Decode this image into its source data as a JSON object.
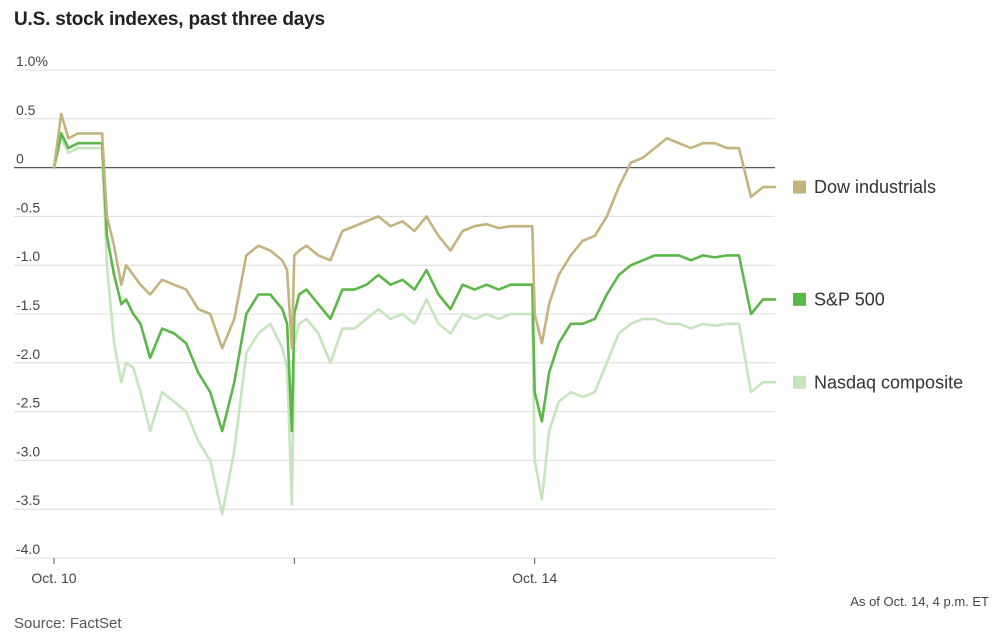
{
  "title": "U.S. stock indexes, past three days",
  "footnote": "As of Oct. 14, 4 p.m. ET",
  "source": "Source: FactSet",
  "chart_data": {
    "type": "line",
    "title": "U.S. stock indexes, past three days",
    "xlabel": "",
    "ylabel": "",
    "ylim": [
      -4.0,
      1.0
    ],
    "yticks": [
      1.0,
      0.5,
      0,
      -0.5,
      -1.0,
      -1.5,
      -2.0,
      -2.5,
      -3.0,
      -3.5,
      -4.0
    ],
    "ytick_labels": [
      "1.0%",
      "0.5",
      "0",
      "-0.5",
      "-1.0",
      "-1.5",
      "-2.0",
      "-2.5",
      "-3.0",
      "-3.5",
      "-4.0"
    ],
    "xlim": [
      0,
      3
    ],
    "xticks": [
      0,
      1,
      2
    ],
    "xtick_labels": [
      "Oct. 10",
      "",
      "Oct. 14"
    ],
    "grid": true,
    "legend": "right",
    "x": [
      0,
      0.03,
      0.06,
      0.1,
      0.15,
      0.2,
      0.22,
      0.25,
      0.28,
      0.3,
      0.33,
      0.36,
      0.4,
      0.45,
      0.5,
      0.55,
      0.6,
      0.65,
      0.7,
      0.75,
      0.8,
      0.85,
      0.9,
      0.95,
      0.97,
      0.99,
      1.0,
      1.02,
      1.05,
      1.1,
      1.15,
      1.2,
      1.25,
      1.3,
      1.35,
      1.4,
      1.45,
      1.5,
      1.55,
      1.6,
      1.65,
      1.7,
      1.75,
      1.8,
      1.85,
      1.9,
      1.95,
      1.99,
      2.0,
      2.03,
      2.06,
      2.1,
      2.15,
      2.2,
      2.25,
      2.3,
      2.35,
      2.4,
      2.45,
      2.5,
      2.55,
      2.6,
      2.65,
      2.7,
      2.75,
      2.8,
      2.85,
      2.9,
      2.95,
      2.97,
      3.0
    ],
    "series": [
      {
        "name": "Dow industrials",
        "color": "#c3b47e",
        "values": [
          0,
          0.55,
          0.3,
          0.35,
          0.35,
          0.35,
          -0.5,
          -0.8,
          -1.2,
          -1.0,
          -1.1,
          -1.2,
          -1.3,
          -1.15,
          -1.2,
          -1.25,
          -1.45,
          -1.5,
          -1.85,
          -1.55,
          -0.9,
          -0.8,
          -0.85,
          -0.95,
          -1.05,
          -1.85,
          -0.9,
          -0.85,
          -0.8,
          -0.9,
          -0.95,
          -0.65,
          -0.6,
          -0.55,
          -0.5,
          -0.6,
          -0.55,
          -0.65,
          -0.5,
          -0.7,
          -0.85,
          -0.65,
          -0.6,
          -0.58,
          -0.62,
          -0.6,
          -0.6,
          -0.6,
          -1.5,
          -1.8,
          -1.4,
          -1.1,
          -0.9,
          -0.75,
          -0.7,
          -0.5,
          -0.2,
          0.05,
          0.1,
          0.2,
          0.3,
          0.25,
          0.2,
          0.25,
          0.25,
          0.2,
          0.2,
          -0.3,
          -0.2,
          -0.2,
          -0.2
        ]
      },
      {
        "name": "S&P 500",
        "color": "#5bb848",
        "values": [
          0,
          0.35,
          0.2,
          0.25,
          0.25,
          0.25,
          -0.7,
          -1.1,
          -1.4,
          -1.35,
          -1.5,
          -1.6,
          -1.95,
          -1.65,
          -1.7,
          -1.8,
          -2.1,
          -2.3,
          -2.7,
          -2.2,
          -1.5,
          -1.3,
          -1.3,
          -1.45,
          -1.6,
          -2.7,
          -1.5,
          -1.3,
          -1.25,
          -1.4,
          -1.55,
          -1.25,
          -1.25,
          -1.2,
          -1.1,
          -1.2,
          -1.15,
          -1.25,
          -1.05,
          -1.3,
          -1.45,
          -1.2,
          -1.25,
          -1.2,
          -1.25,
          -1.2,
          -1.2,
          -1.2,
          -2.3,
          -2.6,
          -2.1,
          -1.8,
          -1.6,
          -1.6,
          -1.55,
          -1.3,
          -1.1,
          -1.0,
          -0.95,
          -0.9,
          -0.9,
          -0.9,
          -0.95,
          -0.9,
          -0.92,
          -0.9,
          -0.9,
          -1.5,
          -1.35,
          -1.35,
          -1.35
        ]
      },
      {
        "name": "Nasdaq composite",
        "color": "#c6e5bd",
        "values": [
          0,
          0.3,
          0.15,
          0.2,
          0.2,
          0.2,
          -1.0,
          -1.8,
          -2.2,
          -2.0,
          -2.05,
          -2.3,
          -2.7,
          -2.3,
          -2.4,
          -2.5,
          -2.8,
          -3.0,
          -3.55,
          -2.9,
          -1.9,
          -1.7,
          -1.6,
          -1.85,
          -2.05,
          -3.45,
          -1.8,
          -1.6,
          -1.55,
          -1.7,
          -2.0,
          -1.65,
          -1.65,
          -1.55,
          -1.45,
          -1.55,
          -1.5,
          -1.6,
          -1.35,
          -1.6,
          -1.7,
          -1.5,
          -1.55,
          -1.5,
          -1.55,
          -1.5,
          -1.5,
          -1.5,
          -3.0,
          -3.4,
          -2.7,
          -2.4,
          -2.3,
          -2.35,
          -2.3,
          -2.0,
          -1.7,
          -1.6,
          -1.55,
          -1.55,
          -1.6,
          -1.6,
          -1.65,
          -1.6,
          -1.62,
          -1.6,
          -1.6,
          -2.3,
          -2.2,
          -2.2,
          -2.2
        ]
      }
    ]
  }
}
